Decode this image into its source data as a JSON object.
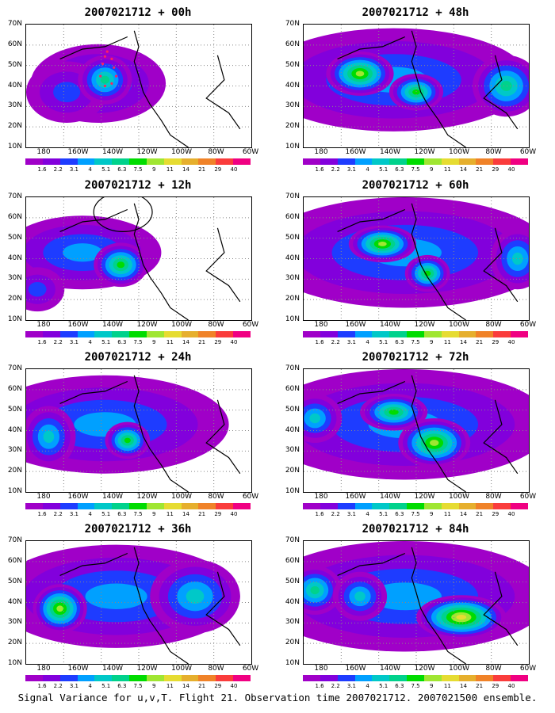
{
  "panels": [
    {
      "title": "2007021712 + 00h",
      "col": 0,
      "row": 0,
      "blobs": [
        [
          0.32,
          0.48,
          0.3,
          0.32,
          3
        ],
        [
          0.18,
          0.55,
          0.18,
          0.25,
          2
        ],
        [
          0.35,
          0.45,
          0.12,
          0.2,
          5
        ]
      ],
      "ellipse": false,
      "dots": true
    },
    {
      "title": "2007021712 + 12h",
      "col": 0,
      "row": 1,
      "blobs": [
        [
          0.25,
          0.45,
          0.35,
          0.3,
          3
        ],
        [
          0.42,
          0.55,
          0.12,
          0.18,
          6
        ],
        [
          0.05,
          0.75,
          0.12,
          0.18,
          2
        ]
      ],
      "ellipse": true,
      "dots": false
    },
    {
      "title": "2007021712 + 24h",
      "col": 0,
      "row": 2,
      "blobs": [
        [
          0.35,
          0.45,
          0.55,
          0.4,
          3
        ],
        [
          0.1,
          0.55,
          0.12,
          0.25,
          4
        ],
        [
          0.45,
          0.58,
          0.1,
          0.15,
          6
        ]
      ],
      "ellipse": false,
      "dots": false
    },
    {
      "title": "2007021712 + 36h",
      "col": 0,
      "row": 3,
      "blobs": [
        [
          0.4,
          0.45,
          0.55,
          0.42,
          3
        ],
        [
          0.15,
          0.55,
          0.12,
          0.2,
          7
        ],
        [
          0.75,
          0.45,
          0.2,
          0.3,
          4
        ]
      ],
      "ellipse": false,
      "dots": false
    },
    {
      "title": "2007021712 + 48h",
      "col": 1,
      "row": 0,
      "blobs": [
        [
          0.4,
          0.45,
          0.6,
          0.42,
          3
        ],
        [
          0.25,
          0.4,
          0.15,
          0.18,
          7
        ],
        [
          0.5,
          0.55,
          0.12,
          0.15,
          6
        ],
        [
          0.9,
          0.5,
          0.15,
          0.25,
          5
        ]
      ],
      "ellipse": false,
      "dots": false
    },
    {
      "title": "2007021712 + 60h",
      "col": 1,
      "row": 1,
      "blobs": [
        [
          0.45,
          0.45,
          0.65,
          0.45,
          3
        ],
        [
          0.35,
          0.38,
          0.15,
          0.15,
          7
        ],
        [
          0.55,
          0.62,
          0.1,
          0.15,
          6
        ],
        [
          0.95,
          0.5,
          0.12,
          0.25,
          4
        ]
      ],
      "ellipse": false,
      "dots": false
    },
    {
      "title": "2007021712 + 72h",
      "col": 1,
      "row": 2,
      "blobs": [
        [
          0.45,
          0.45,
          0.65,
          0.45,
          3
        ],
        [
          0.4,
          0.35,
          0.15,
          0.15,
          6
        ],
        [
          0.58,
          0.6,
          0.16,
          0.2,
          7
        ],
        [
          0.05,
          0.4,
          0.12,
          0.2,
          4
        ]
      ],
      "ellipse": false,
      "dots": false
    },
    {
      "title": "2007021712 + 84h",
      "col": 1,
      "row": 3,
      "blobs": [
        [
          0.45,
          0.45,
          0.65,
          0.45,
          3
        ],
        [
          0.7,
          0.62,
          0.2,
          0.18,
          8
        ],
        [
          0.05,
          0.4,
          0.12,
          0.2,
          5
        ],
        [
          0.25,
          0.45,
          0.12,
          0.2,
          4
        ]
      ],
      "ellipse": false,
      "dots": false
    }
  ],
  "axes": {
    "y_labels": [
      "70N",
      "60N",
      "50N",
      "40N",
      "30N",
      "20N",
      "10N"
    ],
    "x_labels": [
      "180",
      "160W",
      "140W",
      "120W",
      "100W",
      "80W",
      "60W"
    ]
  },
  "colorbar": {
    "colors": [
      "#a000c8",
      "#8200dc",
      "#1e3cff",
      "#00a0ff",
      "#00c8c8",
      "#00d28c",
      "#00dc00",
      "#a0e632",
      "#e6dc32",
      "#e6af2d",
      "#f08228",
      "#fa3c3c",
      "#f00082"
    ],
    "labels": [
      "1.6",
      "2.2",
      "3.1",
      "4",
      "5.1",
      "6.3",
      "7.5",
      "9",
      "11",
      "14",
      "21",
      "29",
      "40"
    ]
  },
  "footer": "Signal Variance for u,v,T. Flight 21. Observation time 2007021712. 2007021500 ensemble."
}
